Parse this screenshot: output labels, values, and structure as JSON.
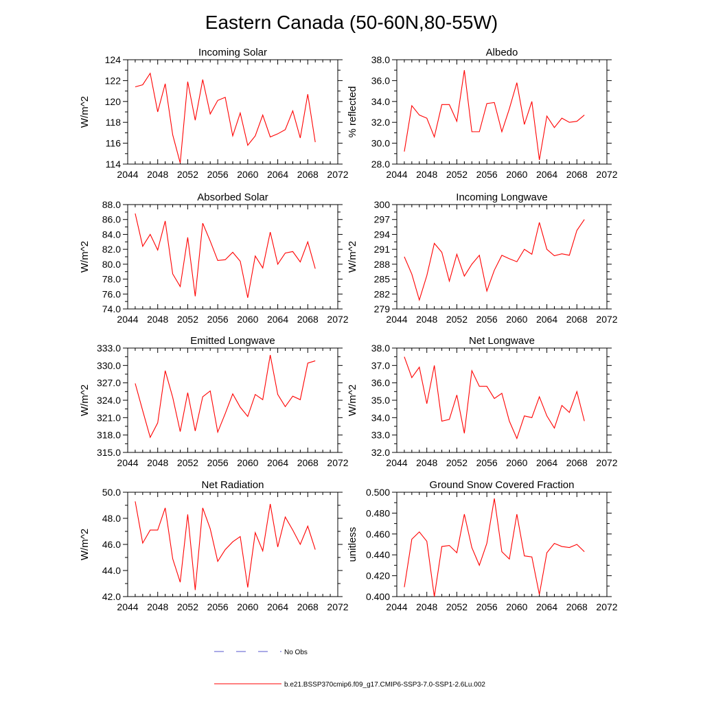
{
  "figure": {
    "title": "Eastern Canada (50-60N,80-55W)"
  },
  "legend": {
    "entries": [
      {
        "label": "No Obs",
        "color": "#5555cc",
        "style": "dashed"
      },
      {
        "label": "b.e21.BSSP370cmip6.f09_g17.CMIP6-SSP3-7.0-SSP1-2.6Lu.002",
        "color": "#ff0000",
        "style": "solid"
      }
    ]
  },
  "chart_data": [
    {
      "type": "line",
      "title": "Incoming Solar",
      "ylabel": "W/m^2",
      "xlim": [
        2044,
        2072
      ],
      "ylim": [
        114,
        124
      ],
      "xticks": [
        2044,
        2048,
        2052,
        2056,
        2060,
        2064,
        2068,
        2072
      ],
      "yticks": [
        114,
        116,
        118,
        120,
        122,
        124
      ],
      "ytick_decimals": 0,
      "x": [
        2045,
        2046,
        2047,
        2048,
        2049,
        2050,
        2051,
        2052,
        2053,
        2054,
        2055,
        2056,
        2057,
        2058,
        2059,
        2060,
        2061,
        2062,
        2063,
        2064,
        2065,
        2066,
        2067,
        2068,
        2069
      ],
      "series": [
        {
          "color": "#ff0000",
          "values": [
            121.4,
            121.6,
            122.7,
            119.0,
            121.7,
            116.8,
            114.1,
            121.9,
            118.2,
            122.1,
            118.8,
            120.1,
            120.4,
            116.7,
            118.9,
            115.8,
            116.7,
            118.7,
            116.6,
            116.9,
            117.3,
            119.1,
            116.5,
            120.7,
            116.1
          ]
        }
      ]
    },
    {
      "type": "line",
      "title": "Albedo",
      "ylabel": "% reflected",
      "xlim": [
        2044,
        2072
      ],
      "ylim": [
        28.0,
        38.0
      ],
      "xticks": [
        2044,
        2048,
        2052,
        2056,
        2060,
        2064,
        2068,
        2072
      ],
      "yticks": [
        28.0,
        30.0,
        32.0,
        34.0,
        36.0,
        38.0
      ],
      "ytick_decimals": 1,
      "x": [
        2045,
        2046,
        2047,
        2048,
        2049,
        2050,
        2051,
        2052,
        2053,
        2054,
        2055,
        2056,
        2057,
        2058,
        2059,
        2060,
        2061,
        2062,
        2063,
        2064,
        2065,
        2066,
        2067,
        2068,
        2069
      ],
      "series": [
        {
          "color": "#ff0000",
          "values": [
            29.2,
            33.6,
            32.7,
            32.4,
            30.6,
            33.7,
            33.7,
            32.1,
            37.0,
            31.1,
            31.1,
            33.8,
            33.9,
            31.1,
            33.3,
            35.8,
            31.8,
            34.0,
            28.4,
            32.6,
            31.5,
            32.4,
            32.0,
            32.1,
            32.7
          ]
        }
      ]
    },
    {
      "type": "line",
      "title": "Absorbed Solar",
      "ylabel": "W/m^2",
      "xlim": [
        2044,
        2072
      ],
      "ylim": [
        74.0,
        88.0
      ],
      "xticks": [
        2044,
        2048,
        2052,
        2056,
        2060,
        2064,
        2068,
        2072
      ],
      "yticks": [
        74.0,
        76.0,
        78.0,
        80.0,
        82.0,
        84.0,
        86.0,
        88.0
      ],
      "ytick_decimals": 1,
      "x": [
        2045,
        2046,
        2047,
        2048,
        2049,
        2050,
        2051,
        2052,
        2053,
        2054,
        2055,
        2056,
        2057,
        2058,
        2059,
        2060,
        2061,
        2062,
        2063,
        2064,
        2065,
        2066,
        2067,
        2068,
        2069
      ],
      "series": [
        {
          "color": "#ff0000",
          "values": [
            86.8,
            82.4,
            84.0,
            81.9,
            85.8,
            78.7,
            77.0,
            83.6,
            75.7,
            85.5,
            83.1,
            80.5,
            80.6,
            81.6,
            80.4,
            75.5,
            81.1,
            79.5,
            84.3,
            80.0,
            81.5,
            81.7,
            80.3,
            83.0,
            79.4
          ]
        }
      ]
    },
    {
      "type": "line",
      "title": "Incoming Longwave",
      "ylabel": "W/m^2",
      "xlim": [
        2044,
        2072
      ],
      "ylim": [
        279,
        300
      ],
      "xticks": [
        2044,
        2048,
        2052,
        2056,
        2060,
        2064,
        2068,
        2072
      ],
      "yticks": [
        279,
        282,
        285,
        288,
        291,
        294,
        297,
        300
      ],
      "ytick_decimals": 0,
      "x": [
        2045,
        2046,
        2047,
        2048,
        2049,
        2050,
        2051,
        2052,
        2053,
        2054,
        2055,
        2056,
        2057,
        2058,
        2059,
        2060,
        2061,
        2062,
        2063,
        2064,
        2065,
        2066,
        2067,
        2068,
        2069
      ],
      "series": [
        {
          "color": "#ff0000",
          "values": [
            289.5,
            286.0,
            280.8,
            285.7,
            292.2,
            290.4,
            284.6,
            290.0,
            285.6,
            288.0,
            289.8,
            282.6,
            286.8,
            289.8,
            289.1,
            288.5,
            291.0,
            290.0,
            296.4,
            291.0,
            289.7,
            290.1,
            289.8,
            294.8,
            297.0
          ]
        }
      ]
    },
    {
      "type": "line",
      "title": "Emitted Longwave",
      "ylabel": "W/m^2",
      "xlim": [
        2044,
        2072
      ],
      "ylim": [
        315.0,
        333.0
      ],
      "xticks": [
        2044,
        2048,
        2052,
        2056,
        2060,
        2064,
        2068,
        2072
      ],
      "yticks": [
        315.0,
        318.0,
        321.0,
        324.0,
        327.0,
        330.0,
        333.0
      ],
      "ytick_decimals": 1,
      "x": [
        2045,
        2046,
        2047,
        2048,
        2049,
        2050,
        2051,
        2052,
        2053,
        2054,
        2055,
        2056,
        2057,
        2058,
        2059,
        2060,
        2061,
        2062,
        2063,
        2064,
        2065,
        2066,
        2067,
        2068,
        2069
      ],
      "series": [
        {
          "color": "#ff0000",
          "values": [
            326.9,
            322.2,
            317.6,
            320.1,
            329.1,
            324.5,
            318.6,
            325.3,
            318.7,
            324.6,
            325.6,
            318.5,
            321.7,
            325.1,
            322.8,
            321.2,
            325.0,
            324.1,
            331.8,
            325.0,
            322.9,
            324.7,
            324.1,
            330.4,
            330.8
          ]
        }
      ]
    },
    {
      "type": "line",
      "title": "Net Longwave",
      "ylabel": "W/m^2",
      "xlim": [
        2044,
        2072
      ],
      "ylim": [
        32.0,
        38.0
      ],
      "xticks": [
        2044,
        2048,
        2052,
        2056,
        2060,
        2064,
        2068,
        2072
      ],
      "yticks": [
        32.0,
        33.0,
        34.0,
        35.0,
        36.0,
        37.0,
        38.0
      ],
      "ytick_decimals": 1,
      "x": [
        2045,
        2046,
        2047,
        2048,
        2049,
        2050,
        2051,
        2052,
        2053,
        2054,
        2055,
        2056,
        2057,
        2058,
        2059,
        2060,
        2061,
        2062,
        2063,
        2064,
        2065,
        2066,
        2067,
        2068,
        2069
      ],
      "series": [
        {
          "color": "#ff0000",
          "values": [
            37.5,
            36.3,
            36.9,
            34.8,
            37.0,
            33.8,
            33.9,
            35.3,
            33.1,
            36.7,
            35.8,
            35.8,
            35.1,
            35.4,
            33.8,
            32.8,
            34.1,
            34.0,
            35.2,
            34.1,
            33.4,
            34.7,
            34.3,
            35.5,
            33.8
          ]
        }
      ]
    },
    {
      "type": "line",
      "title": "Net Radiation",
      "ylabel": "W/m^2",
      "xlim": [
        2044,
        2072
      ],
      "ylim": [
        42.0,
        50.0
      ],
      "xticks": [
        2044,
        2048,
        2052,
        2056,
        2060,
        2064,
        2068,
        2072
      ],
      "yticks": [
        42.0,
        44.0,
        46.0,
        48.0,
        50.0
      ],
      "ytick_decimals": 1,
      "x": [
        2045,
        2046,
        2047,
        2048,
        2049,
        2050,
        2051,
        2052,
        2053,
        2054,
        2055,
        2056,
        2057,
        2058,
        2059,
        2060,
        2061,
        2062,
        2063,
        2064,
        2065,
        2066,
        2067,
        2068,
        2069
      ],
      "series": [
        {
          "color": "#ff0000",
          "values": [
            49.3,
            46.1,
            47.1,
            47.1,
            48.8,
            44.9,
            43.1,
            48.3,
            42.5,
            48.8,
            47.2,
            44.7,
            45.6,
            46.2,
            46.6,
            42.7,
            46.9,
            45.5,
            49.1,
            45.8,
            48.1,
            47.1,
            46.0,
            47.4,
            45.6
          ]
        }
      ]
    },
    {
      "type": "line",
      "title": "Ground Snow Covered Fraction",
      "ylabel": "unitless",
      "xlim": [
        2044,
        2072
      ],
      "ylim": [
        0.4,
        0.5
      ],
      "xticks": [
        2044,
        2048,
        2052,
        2056,
        2060,
        2064,
        2068,
        2072
      ],
      "yticks": [
        0.4,
        0.42,
        0.44,
        0.46,
        0.48,
        0.5
      ],
      "ytick_decimals": 3,
      "x": [
        2045,
        2046,
        2047,
        2048,
        2049,
        2050,
        2051,
        2052,
        2053,
        2054,
        2055,
        2056,
        2057,
        2058,
        2059,
        2060,
        2061,
        2062,
        2063,
        2064,
        2065,
        2066,
        2067,
        2068,
        2069
      ],
      "series": [
        {
          "color": "#ff0000",
          "values": [
            0.409,
            0.455,
            0.462,
            0.453,
            0.4,
            0.448,
            0.449,
            0.442,
            0.479,
            0.447,
            0.43,
            0.451,
            0.494,
            0.443,
            0.436,
            0.479,
            0.439,
            0.438,
            0.402,
            0.442,
            0.451,
            0.448,
            0.447,
            0.45,
            0.443
          ]
        }
      ]
    }
  ]
}
